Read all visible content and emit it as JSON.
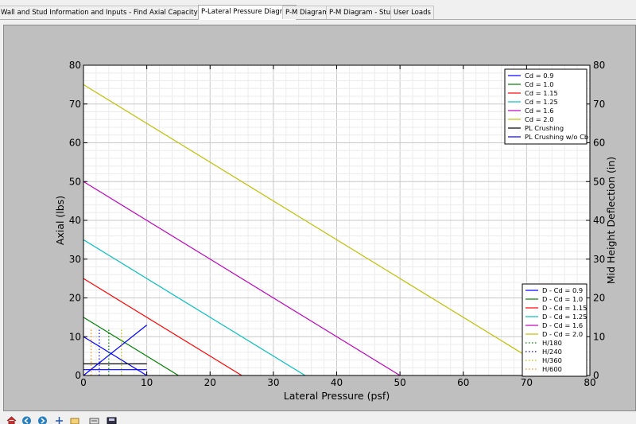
{
  "tabs": [
    {
      "label": "Wall and Stud Information and Inputs - Find Axial Capacity Per Stud",
      "active": false
    },
    {
      "label": "P-Lateral Pressure Diagram",
      "active": true
    },
    {
      "label": "P-M Diagram",
      "active": false
    },
    {
      "label": "P-M Diagram - Stud",
      "active": false
    },
    {
      "label": "User Loads",
      "active": false
    }
  ],
  "toolbar": {
    "icons": [
      "home-icon",
      "back-icon",
      "forward-icon",
      "pan-icon",
      "zoom-icon",
      "configure-subplots-icon",
      "save-icon"
    ]
  },
  "chart_data": {
    "type": "line",
    "xlabel": "Lateral Pressure (psf)",
    "ylabel": "Axial (lbs)",
    "y2label": "Mid Height Deflection (in)",
    "xlim": [
      0,
      80
    ],
    "ylim": [
      0,
      80
    ],
    "y2lim": [
      0,
      80
    ],
    "xticks": [
      0,
      10,
      20,
      30,
      40,
      50,
      60,
      70,
      80
    ],
    "yticks": [
      0,
      10,
      20,
      30,
      40,
      50,
      60,
      70,
      80
    ],
    "grid": true,
    "series": [
      {
        "name": "Cd = 0.9",
        "color": "#0000ff",
        "style": "solid",
        "x": [
          0,
          10
        ],
        "y": [
          10,
          0
        ]
      },
      {
        "name": "Cd = 1.0",
        "color": "#008000",
        "style": "solid",
        "x": [
          0,
          15
        ],
        "y": [
          15,
          0
        ]
      },
      {
        "name": "Cd = 1.15",
        "color": "#ff0000",
        "style": "solid",
        "x": [
          0,
          25
        ],
        "y": [
          25,
          0
        ]
      },
      {
        "name": "Cd = 1.25",
        "color": "#00bfbf",
        "style": "solid",
        "x": [
          0,
          35
        ],
        "y": [
          35,
          0
        ]
      },
      {
        "name": "Cd = 1.6",
        "color": "#bf00bf",
        "style": "solid",
        "x": [
          0,
          50
        ],
        "y": [
          50,
          0
        ]
      },
      {
        "name": "Cd = 2.0",
        "color": "#bfbf00",
        "style": "solid",
        "x": [
          0,
          75
        ],
        "y": [
          75,
          0
        ]
      },
      {
        "name": "PL Crushing",
        "color": "#000000",
        "style": "solid",
        "x": [
          0,
          10
        ],
        "y": [
          3,
          3
        ]
      },
      {
        "name": "PL Crushing w/o Cb",
        "color": "#0000ff",
        "style": "solid",
        "x": [
          0,
          10
        ],
        "y": [
          1.5,
          1.5
        ]
      }
    ],
    "series2": [
      {
        "name": "D - Cd = 0.9",
        "color": "#0000ff",
        "style": "solid",
        "x": [
          0,
          10
        ],
        "y": [
          0,
          13
        ]
      },
      {
        "name": "D - Cd = 1.0",
        "color": "#008000",
        "style": "solid",
        "x": [],
        "y": []
      },
      {
        "name": "D - Cd = 1.15",
        "color": "#ff0000",
        "style": "solid",
        "x": [],
        "y": []
      },
      {
        "name": "D - Cd = 1.25",
        "color": "#00bfbf",
        "style": "solid",
        "x": [],
        "y": []
      },
      {
        "name": "D - Cd = 1.6",
        "color": "#bf00bf",
        "style": "solid",
        "x": [],
        "y": []
      },
      {
        "name": "D - Cd = 2.0",
        "color": "#bfbf00",
        "style": "solid",
        "x": [],
        "y": []
      },
      {
        "name": "H/180",
        "color": "#008000",
        "style": "dotted",
        "x": [
          4,
          4
        ],
        "y": [
          0,
          12
        ]
      },
      {
        "name": "H/240",
        "color": "#0000ff",
        "style": "dotted",
        "x": [
          2.5,
          2.5
        ],
        "y": [
          0,
          12
        ]
      },
      {
        "name": "H/360",
        "color": "#bfbf00",
        "style": "dotted",
        "x": [
          6,
          6
        ],
        "y": [
          0,
          12
        ]
      },
      {
        "name": "H/600",
        "color": "#ff8c00",
        "style": "dotted",
        "x": [
          1.2,
          1.2
        ],
        "y": [
          0,
          12
        ]
      }
    ],
    "legend1_position": "top-right",
    "legend2_position": "lower-right"
  }
}
